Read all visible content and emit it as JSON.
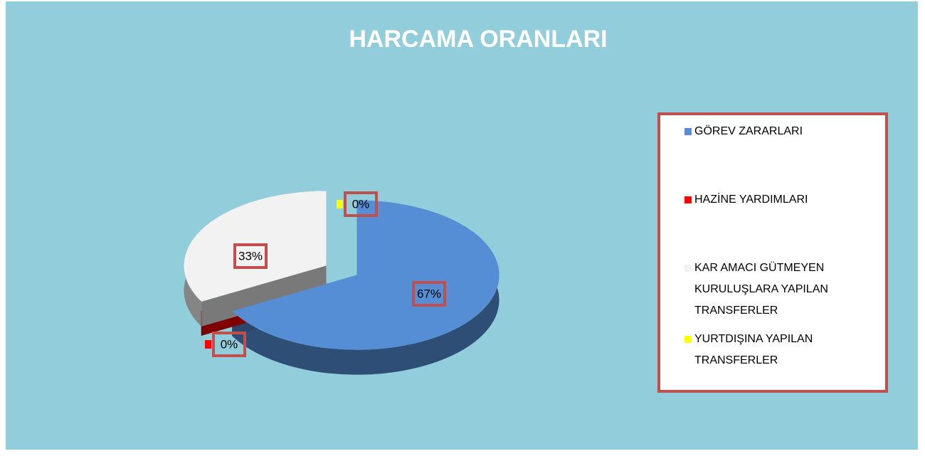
{
  "chart_data": {
    "type": "pie",
    "title": "HARCAMA ORANLARI",
    "categories": [
      "GÖREV ZARARLARI",
      "HAZİNE YARDIMLARI",
      "KAR AMACI GÜTMEYEN KURULUŞLARA YAPILAN TRANSFERLER",
      "YURTDIŞINA YAPILAN TRANSFERLER"
    ],
    "values": [
      67,
      0,
      33,
      0
    ],
    "value_labels": [
      "67%",
      "0%",
      "33%",
      "0%"
    ],
    "colors": [
      "#558ED5",
      "#FF0000",
      "#F2F2F2",
      "#FFFF00"
    ],
    "legend": "right"
  }
}
